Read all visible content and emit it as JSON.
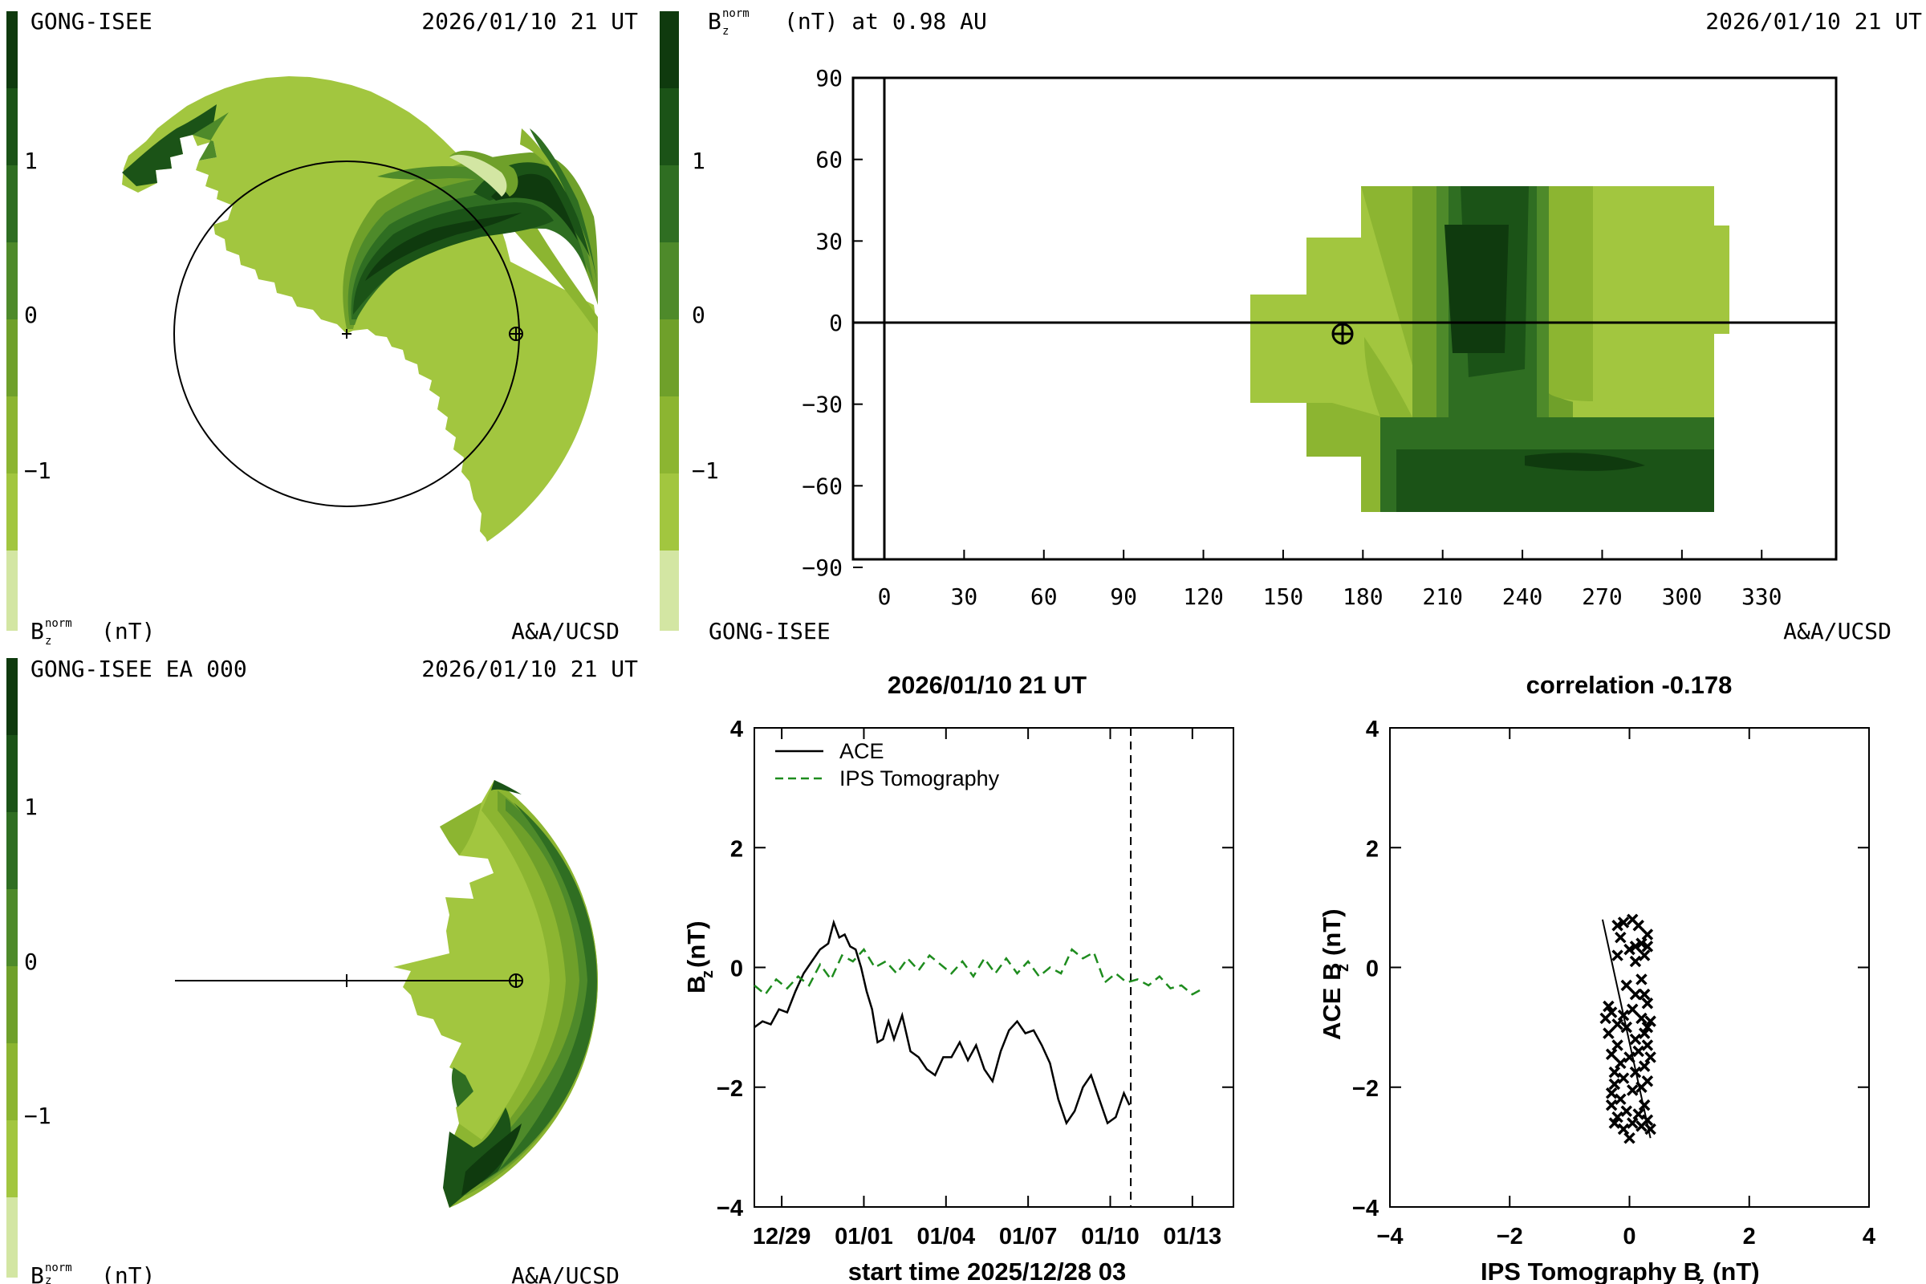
{
  "colors": {
    "scale": [
      "#d3e6a3",
      "#a2c63f",
      "#8cb531",
      "#6fa02a",
      "#4e8a2a",
      "#2f6e22",
      "#1b5317",
      "#0f3a0e"
    ],
    "ace": "#000000",
    "ips": "#1e8c1e"
  },
  "panel_top_left": {
    "source": "GONG-ISEE",
    "timestamp": "2026/01/10 21 UT",
    "scale_ticks": [
      "1",
      "0",
      "−1"
    ],
    "scale_label_main": "B",
    "scale_label_sup": "norm",
    "scale_label_sub": "z",
    "scale_label_unit": "(nT)",
    "credit": "A&A/UCSD"
  },
  "panel_top_right": {
    "title_main": "B",
    "title_sup": "norm",
    "title_sub": "z",
    "title_rest": "(nT) at 0.98 AU",
    "timestamp": "2026/01/10 21 UT",
    "scale_ticks": [
      "1",
      "0",
      "−1"
    ],
    "source": "GONG-ISEE",
    "credit": "A&A/UCSD",
    "x_ticks": [
      "0",
      "30",
      "60",
      "90",
      "120",
      "150",
      "180",
      "210",
      "240",
      "270",
      "300",
      "330"
    ],
    "y_ticks": [
      "90",
      "60",
      "30",
      "0",
      "−30",
      "−60",
      "−90"
    ]
  },
  "panel_bottom_left": {
    "source": "GONG-ISEE EA 000",
    "timestamp": "2026/01/10 21 UT",
    "scale_ticks": [
      "1",
      "0",
      "−1"
    ],
    "scale_label_main": "B",
    "scale_label_sup": "norm",
    "scale_label_sub": "z",
    "scale_label_unit": "(nT)",
    "credit": "A&A/UCSD"
  },
  "chart_data": [
    {
      "type": "line",
      "title": "2026/01/10 21 UT",
      "xlabel": "start time 2025/12/28 03",
      "ylabel_main": "B",
      "ylabel_sub": "z",
      "ylabel_unit": "(nT)",
      "x_tick_labels": [
        "12/29",
        "01/01",
        "01/04",
        "01/07",
        "01/10",
        "01/13"
      ],
      "x_tick_days": [
        1,
        4,
        7,
        10,
        13,
        16
      ],
      "y_tick_labels": [
        "4",
        "2",
        "0",
        "−2",
        "−4"
      ],
      "xlim_days": [
        0,
        17.5
      ],
      "ylim": [
        -4,
        4
      ],
      "now_marker_day": 13.75,
      "legend": "top-left",
      "series": [
        {
          "name": "ACE",
          "style": "solid",
          "x_days": [
            0,
            0.3,
            0.6,
            0.9,
            1.2,
            1.5,
            1.8,
            2.1,
            2.4,
            2.7,
            2.9,
            3.1,
            3.3,
            3.5,
            3.7,
            3.9,
            4.1,
            4.3,
            4.5,
            4.7,
            4.9,
            5.1,
            5.4,
            5.7,
            6.0,
            6.3,
            6.6,
            6.9,
            7.2,
            7.5,
            7.8,
            8.1,
            8.4,
            8.7,
            9.0,
            9.3,
            9.6,
            9.9,
            10.2,
            10.5,
            10.8,
            11.1,
            11.4,
            11.7,
            12.0,
            12.3,
            12.6,
            12.9,
            13.2,
            13.5,
            13.7
          ],
          "values": [
            -1.0,
            -0.9,
            -0.95,
            -0.7,
            -0.75,
            -0.4,
            -0.1,
            0.1,
            0.3,
            0.4,
            0.75,
            0.5,
            0.55,
            0.35,
            0.3,
            0.0,
            -0.4,
            -0.7,
            -1.25,
            -1.2,
            -0.9,
            -1.2,
            -0.8,
            -1.4,
            -1.5,
            -1.7,
            -1.8,
            -1.5,
            -1.5,
            -1.25,
            -1.55,
            -1.3,
            -1.7,
            -1.9,
            -1.4,
            -1.05,
            -0.9,
            -1.1,
            -1.05,
            -1.3,
            -1.6,
            -2.2,
            -2.6,
            -2.4,
            -2.0,
            -1.8,
            -2.2,
            -2.6,
            -2.5,
            -2.1,
            -2.3
          ]
        },
        {
          "name": "IPS Tomography",
          "style": "dashed",
          "x_days": [
            0,
            0.4,
            0.8,
            1.2,
            1.6,
            2.0,
            2.4,
            2.8,
            3.2,
            3.6,
            4.0,
            4.4,
            4.8,
            5.2,
            5.6,
            6.0,
            6.4,
            6.8,
            7.2,
            7.6,
            8.0,
            8.4,
            8.8,
            9.2,
            9.6,
            10.0,
            10.4,
            10.8,
            11.2,
            11.6,
            12.0,
            12.4,
            12.8,
            13.2,
            13.6,
            14.0,
            14.4,
            14.8,
            15.2,
            15.6,
            16.0,
            16.4
          ],
          "values": [
            -0.3,
            -0.45,
            -0.2,
            -0.35,
            -0.15,
            -0.3,
            0.05,
            -0.2,
            0.2,
            0.1,
            0.3,
            0.0,
            0.1,
            -0.1,
            0.15,
            -0.05,
            0.2,
            0.05,
            -0.1,
            0.1,
            -0.15,
            0.15,
            -0.1,
            0.15,
            -0.1,
            0.1,
            -0.15,
            0.0,
            -0.1,
            0.3,
            0.15,
            0.25,
            -0.25,
            -0.1,
            -0.25,
            -0.2,
            -0.3,
            -0.15,
            -0.35,
            -0.3,
            -0.45,
            -0.35
          ]
        }
      ]
    },
    {
      "type": "scatter",
      "title": "correlation -0.178",
      "xlabel_main": "IPS Tomography B",
      "xlabel_sub": "z",
      "xlabel_unit": "(nT)",
      "ylabel_main": "ACE B",
      "ylabel_sub": "z",
      "ylabel_unit": "(nT)",
      "xlim": [
        -4,
        4
      ],
      "ylim": [
        -4,
        4
      ],
      "x_tick_labels": [
        "−4",
        "−2",
        "0",
        "2",
        "4"
      ],
      "y_tick_labels": [
        "4",
        "2",
        "0",
        "−2",
        "−4"
      ],
      "fit_line": [
        [
          -0.45,
          0.8
        ],
        [
          0.35,
          -2.85
        ]
      ],
      "points": [
        [
          -0.2,
          0.7
        ],
        [
          -0.1,
          0.75
        ],
        [
          0.05,
          0.8
        ],
        [
          0.15,
          0.7
        ],
        [
          0.3,
          0.55
        ],
        [
          0.2,
          0.4
        ],
        [
          -0.15,
          0.5
        ],
        [
          0.0,
          0.3
        ],
        [
          0.25,
          0.2
        ],
        [
          0.1,
          0.35
        ],
        [
          -0.2,
          0.2
        ],
        [
          0.3,
          0.35
        ],
        [
          0.1,
          0.1
        ],
        [
          -0.3,
          -0.75
        ],
        [
          -0.4,
          -0.85
        ],
        [
          -0.35,
          -0.65
        ],
        [
          -0.2,
          -0.95
        ],
        [
          -0.1,
          -0.8
        ],
        [
          0.05,
          -0.7
        ],
        [
          0.2,
          -0.85
        ],
        [
          0.3,
          -0.6
        ],
        [
          0.35,
          -0.9
        ],
        [
          0.25,
          -1.1
        ],
        [
          0.1,
          -1.2
        ],
        [
          -0.05,
          -1.0
        ],
        [
          -0.2,
          -1.3
        ],
        [
          -0.3,
          -1.45
        ],
        [
          -0.15,
          -1.6
        ],
        [
          0.0,
          -1.5
        ],
        [
          0.15,
          -1.4
        ],
        [
          0.3,
          -1.3
        ],
        [
          0.25,
          -1.65
        ],
        [
          0.1,
          -1.75
        ],
        [
          -0.1,
          -1.85
        ],
        [
          -0.25,
          -1.95
        ],
        [
          -0.3,
          -2.1
        ],
        [
          -0.15,
          -2.2
        ],
        [
          0.05,
          -2.05
        ],
        [
          0.2,
          -2.0
        ],
        [
          0.3,
          -1.9
        ],
        [
          0.25,
          -2.3
        ],
        [
          0.15,
          -2.45
        ],
        [
          -0.05,
          -2.4
        ],
        [
          -0.2,
          -2.5
        ],
        [
          -0.3,
          -2.3
        ],
        [
          -0.25,
          -2.6
        ],
        [
          -0.1,
          -2.7
        ],
        [
          0.05,
          -2.6
        ],
        [
          0.2,
          -2.65
        ],
        [
          0.3,
          -2.55
        ],
        [
          0.35,
          -2.7
        ],
        [
          0.1,
          -0.45
        ],
        [
          -0.05,
          -0.3
        ],
        [
          0.2,
          -0.2
        ],
        [
          0.3,
          -1.0
        ],
        [
          -0.35,
          -1.1
        ],
        [
          -0.25,
          -1.75
        ],
        [
          0.35,
          -1.5
        ],
        [
          0.0,
          -2.85
        ],
        [
          0.25,
          -0.45
        ]
      ]
    }
  ]
}
